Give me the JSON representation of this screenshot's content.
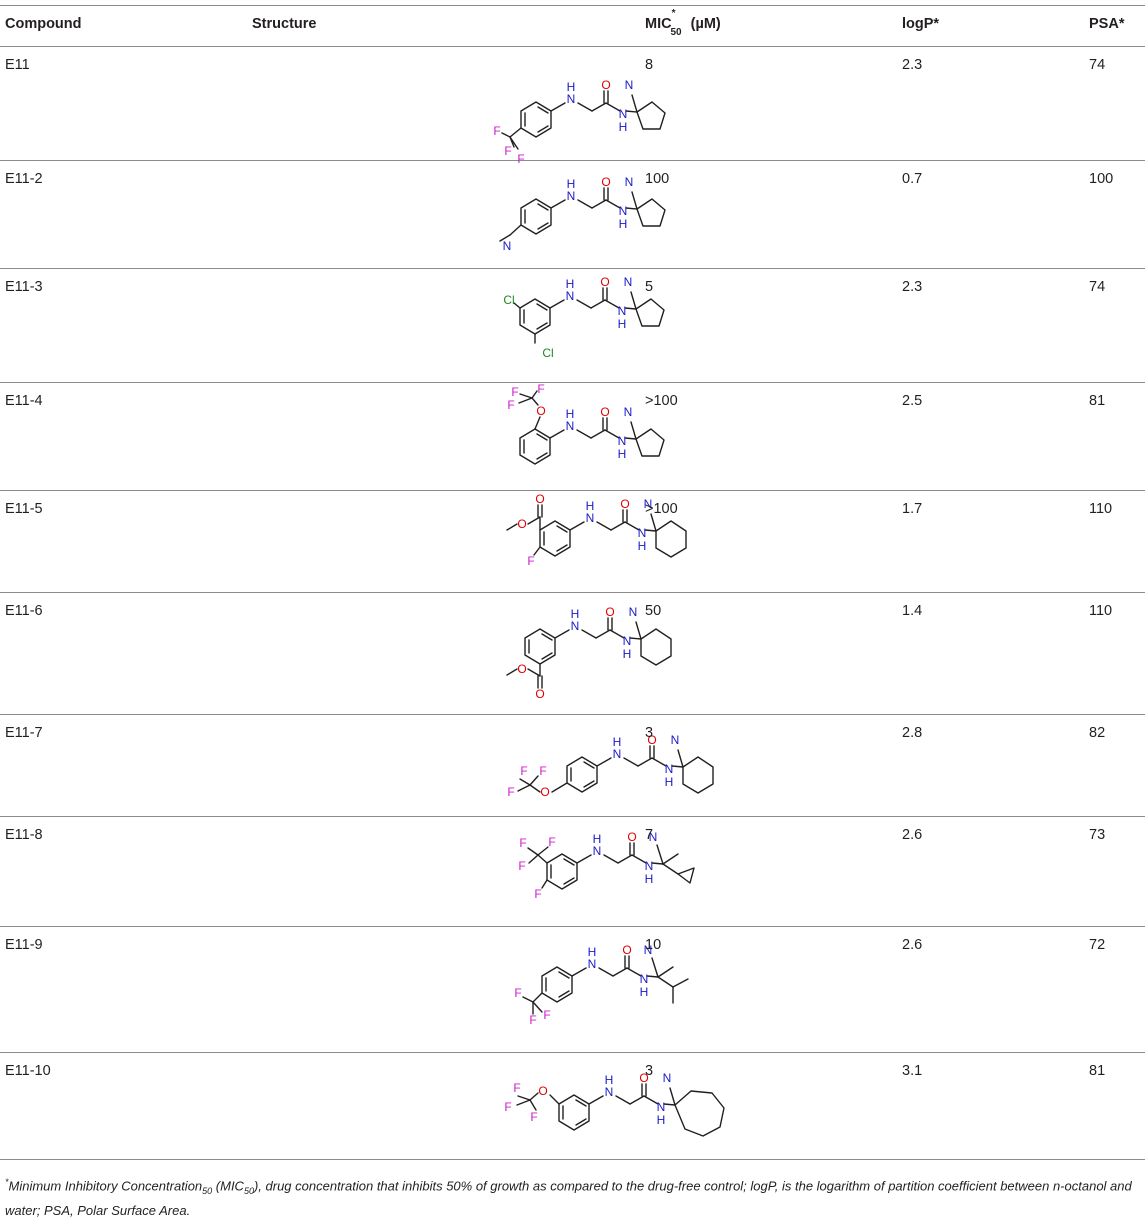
{
  "table": {
    "headers": {
      "compound": "Compound",
      "structure": "Structure",
      "mic_prefix": "MIC",
      "mic_sup": "*",
      "mic_sub": "50",
      "mic_unit": " (µM)",
      "logp": "logP*",
      "psa": "PSA*"
    },
    "rows": [
      {
        "compound": "E11",
        "mic": "8",
        "logp": "2.3",
        "psa": "74"
      },
      {
        "compound": "E11-2",
        "mic": "100",
        "logp": "0.7",
        "psa": "100"
      },
      {
        "compound": "E11-3",
        "mic": "5",
        "logp": "2.3",
        "psa": "74"
      },
      {
        "compound": "E11-4",
        "mic": ">100",
        "logp": "2.5",
        "psa": "81"
      },
      {
        "compound": "E11-5",
        "mic": ">100",
        "logp": "1.7",
        "psa": "110"
      },
      {
        "compound": "E11-6",
        "mic": "50",
        "logp": "1.4",
        "psa": "110"
      },
      {
        "compound": "E11-7",
        "mic": "3",
        "logp": "2.8",
        "psa": "82"
      },
      {
        "compound": "E11-8",
        "mic": "7",
        "logp": "2.6",
        "psa": "73"
      },
      {
        "compound": "E11-9",
        "mic": "10",
        "logp": "2.6",
        "psa": "72"
      },
      {
        "compound": "E11-10",
        "mic": "3",
        "logp": "3.1",
        "psa": "81"
      }
    ]
  },
  "atoms": {
    "n": "N",
    "h": "H",
    "o": "O",
    "f": "F",
    "cl": "Cl"
  },
  "colors": {
    "nitrogen": "#1a1ac8",
    "oxygen": "#e00000",
    "fluorine": "#cc1fcc",
    "chlorine": "#1e8a1e",
    "bonds": "#231f20",
    "rules": "#8c8c8c"
  },
  "footnote": {
    "star": "*",
    "part1": "Minimum Inhibitory Concentration",
    "sub1": "50",
    "part2": " (MIC",
    "sub2": "50",
    "part3": "), drug concentration that inhibits 50% of growth as compared to the drug-free control; logP, is the logarithm of partition coefficient between n-octanol and water; PSA, Polar Surface Area."
  }
}
